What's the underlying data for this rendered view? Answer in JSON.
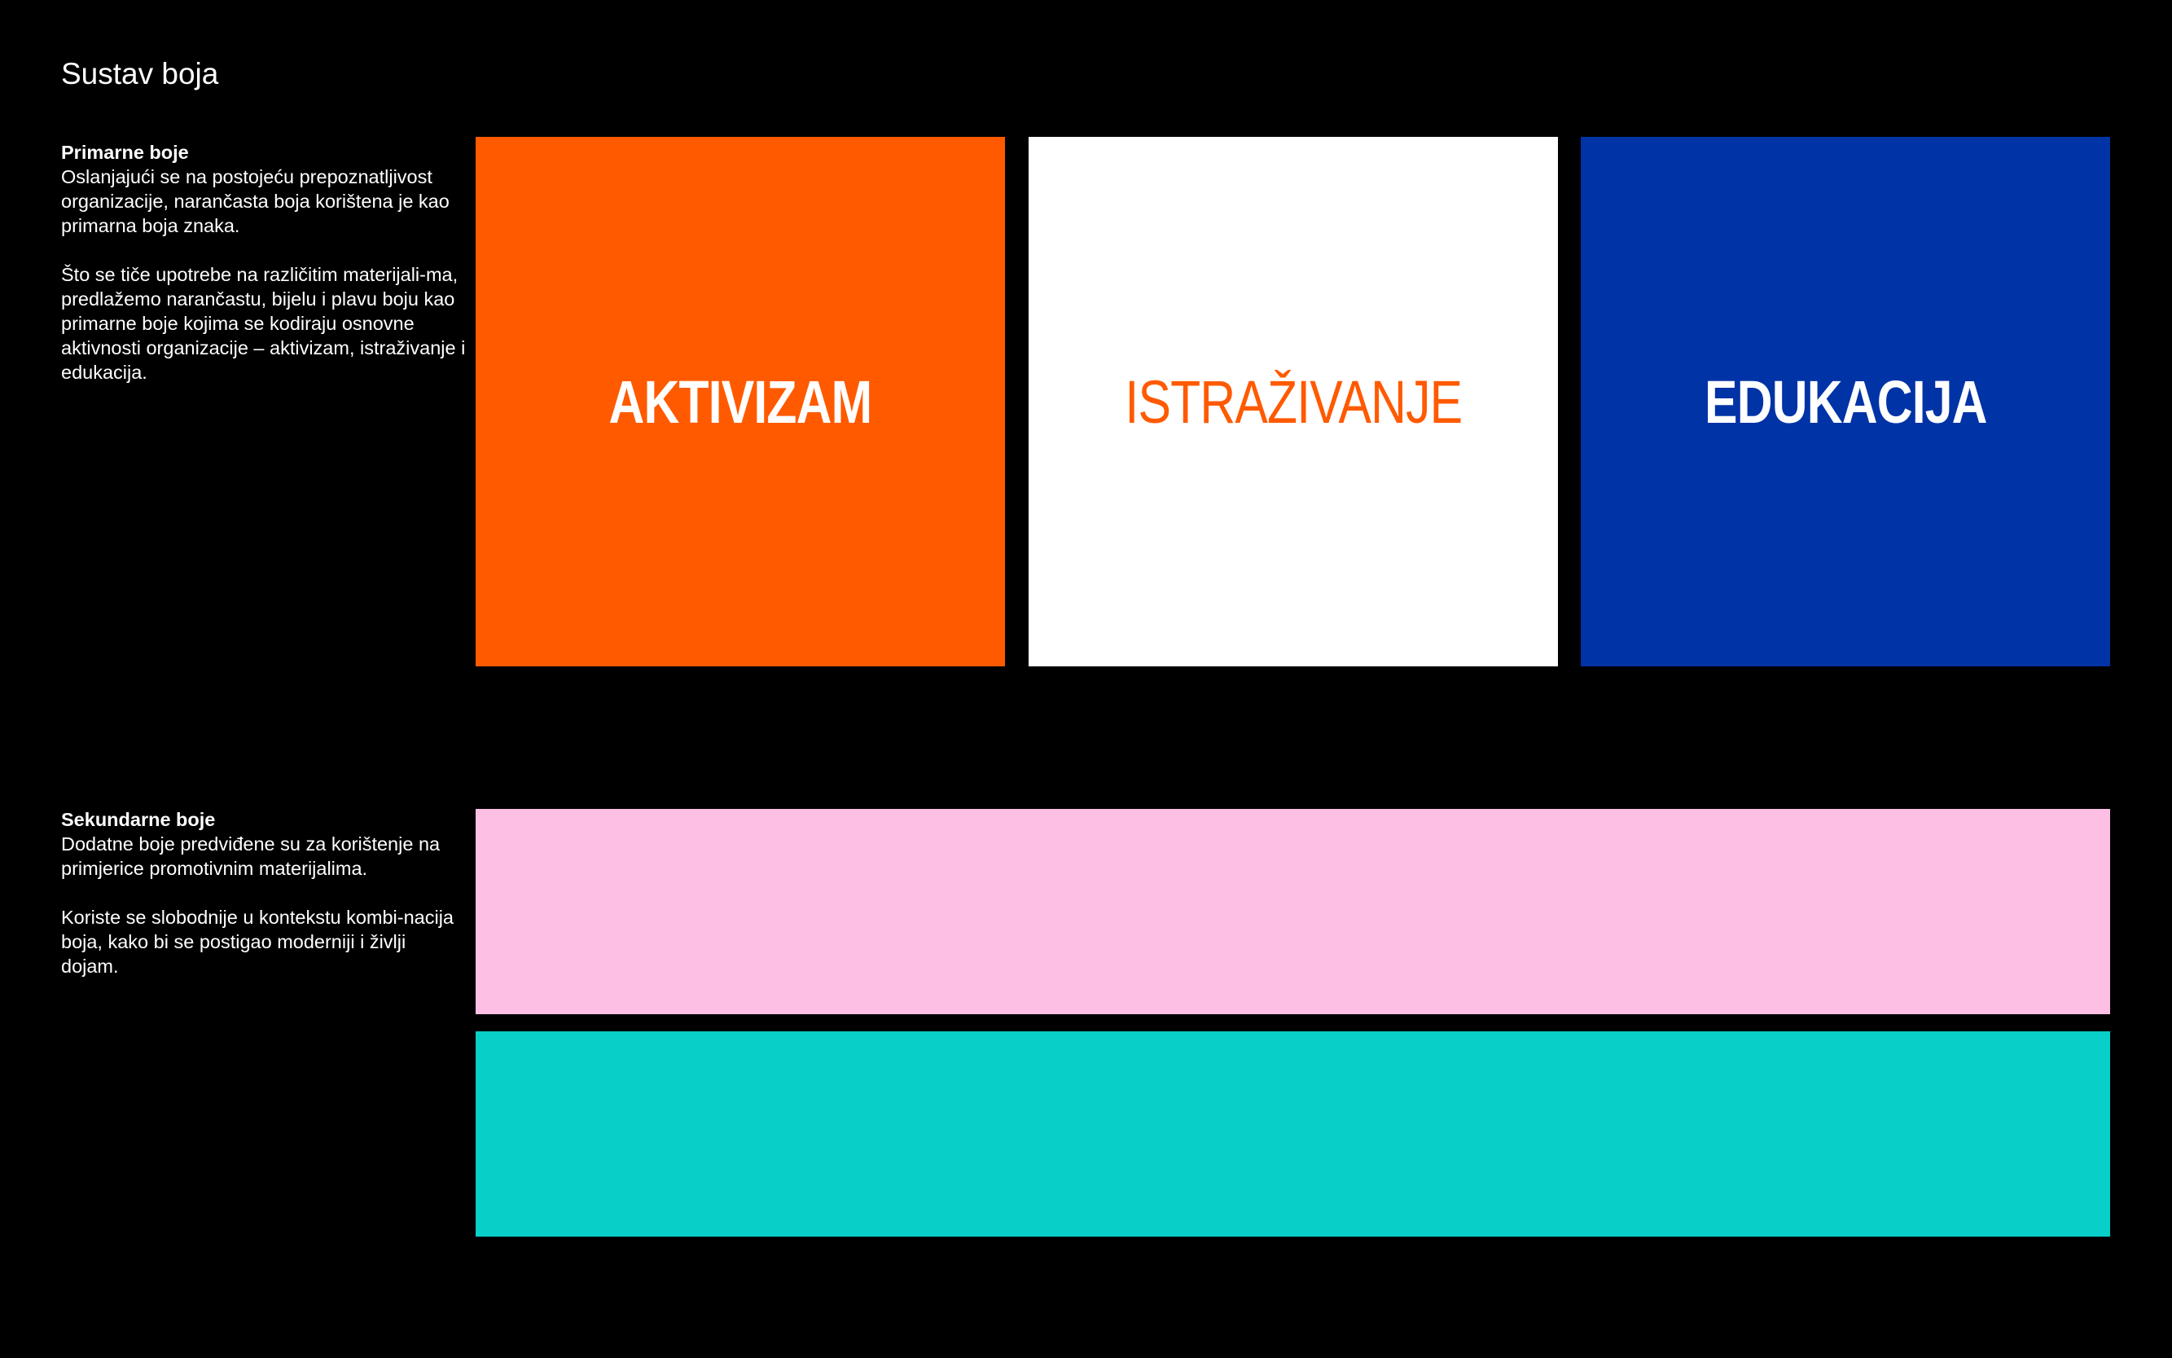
{
  "title": "Sustav boja",
  "primary": {
    "heading": "Primarne boje",
    "paragraphs": [
      "Oslanjajući se na postojeću prepoznatljivost organizacije, narančasta boja korištena je kao primarna boja znaka.",
      "Što se tiče upotrebe na različitim materijali-ma, predlažemo narančastu, bijelu i plavu boju kao primarne boje kojima se kodiraju osnovne aktivnosti organizacije – aktivizam, istraživanje i edukacija."
    ],
    "swatches": [
      {
        "label": "AKTIVIZAM",
        "background": "#FF5A00",
        "text_color": "#FFFFFF"
      },
      {
        "label": "ISTRAŽIVANJE",
        "background": "#FFFFFF",
        "text_color": "#FF5A00"
      },
      {
        "label": "EDUKACIJA",
        "background": "#0033A6",
        "text_color": "#FFFFFF"
      }
    ]
  },
  "secondary": {
    "heading": "Sekundarne boje",
    "paragraphs": [
      "Dodatne boje predviđene su za korištenje na primjerice promotivnim materijalima.",
      "Koriste se slobodnije u kontekstu kombi-nacija boja, kako bi se postigao moderniji i življi dojam."
    ],
    "swatches": [
      {
        "background": "#FDBFE3"
      },
      {
        "background": "#08CFC7"
      }
    ]
  }
}
